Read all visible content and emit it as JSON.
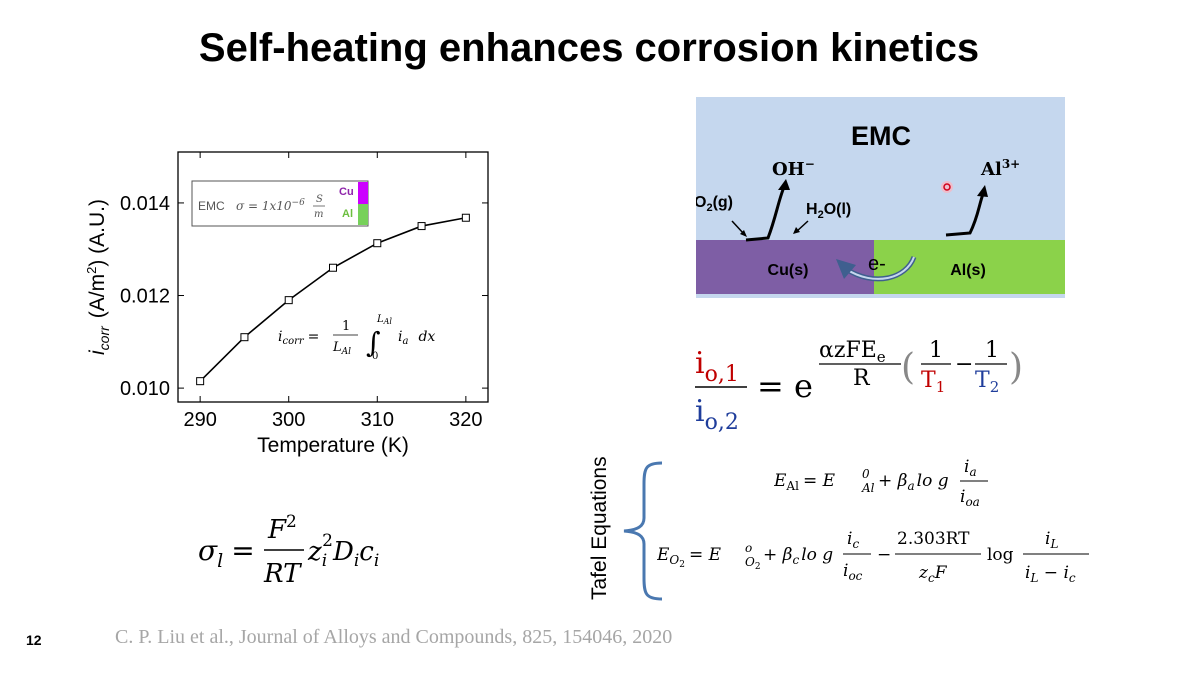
{
  "slide": {
    "title": "Self-heating enhances corrosion kinetics",
    "page_number": "12",
    "citation": "C. P. Liu et al., Journal of Alloys and Compounds, 825, 154046, 2020"
  },
  "chart_data": {
    "type": "line",
    "xlabel": "Temperature (K)",
    "ylabel_main": "i",
    "ylabel_sub": "corr",
    "ylabel_unit": "(A/m",
    "ylabel_unit_sup": "2",
    "ylabel_unit_end": ") (A.U.)",
    "x": [
      290,
      295,
      300,
      305,
      310,
      315,
      320
    ],
    "y": [
      0.01015,
      0.0111,
      0.0119,
      0.0126,
      0.01313,
      0.0135,
      0.01368
    ],
    "xlim": [
      287.5,
      322.5
    ],
    "ylim": [
      0.0097,
      0.0151
    ],
    "xticks": [
      "290",
      "300",
      "310",
      "320"
    ],
    "yticks": [
      "0.010",
      "0.012",
      "0.014"
    ],
    "grid": false,
    "inset": {
      "label": "EMC",
      "sigma": "σ = 1x10",
      "sigma_exp": "−6",
      "sigma_unit_num": "S",
      "sigma_unit_den": "m",
      "cu_label": "Cu",
      "al_label": "Al",
      "cu_color": "#cc00ff",
      "al_color": "#77d15a"
    },
    "formula": {
      "lhs": "i",
      "lhs_sub": "corr",
      "eq": "=",
      "num": "1",
      "den": "L",
      "den_sub": "Al",
      "int_upper": "L",
      "int_upper_sub": "Al",
      "int_lower": "0",
      "integrand": "i",
      "integrand_sub": "a",
      "dx": "dx"
    }
  },
  "emc_diagram": {
    "label": "EMC",
    "oh": "OH",
    "oh_sup": "−",
    "al_ion": "Al",
    "al_ion_sup": "3+",
    "o2": "O",
    "o2_sub": "2",
    "o2_tail": "(g)",
    "h2o": "H",
    "h2o_sub": "2",
    "h2o_tail": "O(l)",
    "electron": "e-",
    "cu": "Cu(s)",
    "al": "Al(s)",
    "colors": {
      "emc": "#c5d7ee",
      "cu": "#7e5ea5",
      "al": "#8bd24a"
    }
  },
  "arrhenius": {
    "num": "i",
    "num_sub": "o,1",
    "den": "i",
    "den_sub": "o,2",
    "eq": "= e",
    "exp_num": "αzFE",
    "exp_num_sub": "e",
    "exp_den": "R",
    "one_a": "1",
    "t1": "T",
    "t1_sub": "1",
    "minus": "−",
    "one_b": "1",
    "t2": "T",
    "t2_sub": "2",
    "red": "#c00000",
    "blue": "#1f3d9b"
  },
  "conductivity": {
    "lhs": "σ",
    "lhs_sub": "l",
    "eq": "=",
    "num": "F",
    "num_sup": "2",
    "den": "RT",
    "z": "z",
    "z_sub": "i",
    "z_sup": "2",
    "d": "D",
    "d_sub": "i",
    "c": "c",
    "c_sub": "i"
  },
  "tafel": {
    "label": "Tafel Equations",
    "eq1": {
      "lhs": "E",
      "lhs_sub": "Al",
      "eq": "= E",
      "e0_sub": "Al",
      "e0_sup": "0",
      "plus": "+ β",
      "beta_sub": "a",
      "log": "lo g",
      "num": "i",
      "num_sub": "a",
      "den": "i",
      "den_sub": "oa"
    },
    "eq2": {
      "lhs": "E",
      "lhs_sub": "O",
      "lhs_sub2": "2",
      "eq": "= E",
      "e0_sub": "O",
      "e0_sub2": "2",
      "e0_sup": "o",
      "plus": "+ β",
      "beta_sub": "c",
      "log": "lo g",
      "num": "i",
      "num_sub": "c",
      "den": "i",
      "den_sub": "oc",
      "minus": "−",
      "frac2_num": "2.303RT",
      "frac2_den": "z",
      "frac2_den_sub": "c",
      "frac2_den_tail": "F",
      "log2": "log",
      "frac3_num": "i",
      "frac3_num_sub": "L",
      "frac3_den": "i",
      "frac3_den_sub": "L",
      "frac3_den_mid": " − i",
      "frac3_den_sub2": "c"
    },
    "brace_color": "#4a78b0"
  }
}
